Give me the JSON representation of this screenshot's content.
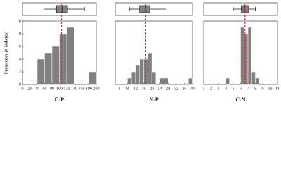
{
  "chart_data": [
    {
      "type": "histogram",
      "xlabel": "C:P",
      "ylabel": "Frequency (# isolates)",
      "bins": [
        40,
        60,
        80,
        100,
        120,
        140,
        160,
        180,
        200
      ],
      "counts": [
        4,
        5,
        6,
        8,
        9,
        0,
        0,
        2
      ],
      "xlim": [
        0,
        200
      ],
      "xticks": [
        0,
        20,
        40,
        60,
        80,
        100,
        120,
        140,
        160,
        180,
        200
      ],
      "ylim": [
        0,
        10
      ],
      "yticks": [
        0,
        2,
        4,
        6,
        8,
        10
      ],
      "mean": 106,
      "box": {
        "min": 58,
        "q1": 92,
        "median": 108,
        "q3": 122,
        "max": 168
      },
      "color": "#808080",
      "mean_color": "#e0282e"
    },
    {
      "type": "histogram",
      "xlabel": "N:P",
      "bins": [
        8,
        10,
        12,
        14,
        16,
        18,
        20,
        22,
        24,
        26,
        28,
        30,
        32,
        34,
        36,
        38,
        40
      ],
      "counts": [
        1,
        2,
        3,
        4,
        4,
        5,
        2,
        0,
        1,
        1,
        0,
        0,
        0,
        0,
        0,
        1
      ],
      "xlim": [
        2,
        40
      ],
      "xticks": [
        4,
        8,
        12,
        16,
        20,
        24,
        28,
        32,
        36,
        40
      ],
      "ylim": [
        0,
        10
      ],
      "mean": 17,
      "box": {
        "min": 9,
        "q1": 14,
        "median": 17,
        "q3": 19,
        "max": 27
      },
      "color": "#808080",
      "mean_color": "#e0282e"
    },
    {
      "type": "histogram",
      "xlabel": "C:N",
      "bins": [
        4,
        4.5,
        5,
        5.5,
        6,
        6.5,
        7,
        7.5,
        8,
        8.5
      ],
      "counts": [
        1,
        0,
        0,
        0,
        9,
        8,
        9,
        2,
        1
      ],
      "xlim": [
        1,
        11
      ],
      "xticks": [
        1,
        2,
        3,
        4,
        5,
        6,
        7,
        8,
        9,
        10,
        11
      ],
      "ylim": [
        0,
        10
      ],
      "mean": 6.6,
      "box": {
        "min": 5,
        "q1": 6.1,
        "median": 6.6,
        "q3": 7.1,
        "max": 8
      },
      "color": "#808080",
      "mean_color": "#e0282e"
    }
  ]
}
